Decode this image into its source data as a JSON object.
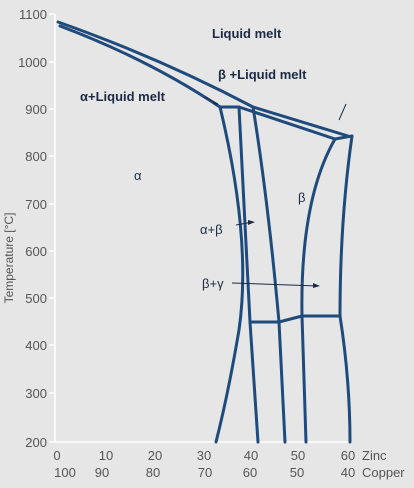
{
  "axes": {
    "y_label": "Temperature [°C]",
    "y_ticks": [
      "1100",
      "1000",
      "900",
      "800",
      "700",
      "600",
      "500",
      "400",
      "300",
      "200"
    ],
    "x_ticks_zinc": [
      "0",
      "10",
      "20",
      "30",
      "40",
      "50",
      "60"
    ],
    "x_ticks_copper": [
      "100",
      "90",
      "80",
      "70",
      "60",
      "50",
      "40"
    ],
    "x_unit_zinc": "Zinc",
    "x_unit_copper": "Copper"
  },
  "regions": {
    "liquid_melt": "Liquid melt",
    "beta_liquid": "β +Liquid melt",
    "alpha_liquid": "α+Liquid melt",
    "alpha": "α",
    "beta": "β",
    "alpha_beta": "α+β",
    "beta_gamma": "β+γ"
  },
  "colors": {
    "background": "#e6e6e6",
    "axis": "#ffffff",
    "phase_line": "#1f4a7c",
    "label": "#1c2a44",
    "tick": "#555555"
  }
}
